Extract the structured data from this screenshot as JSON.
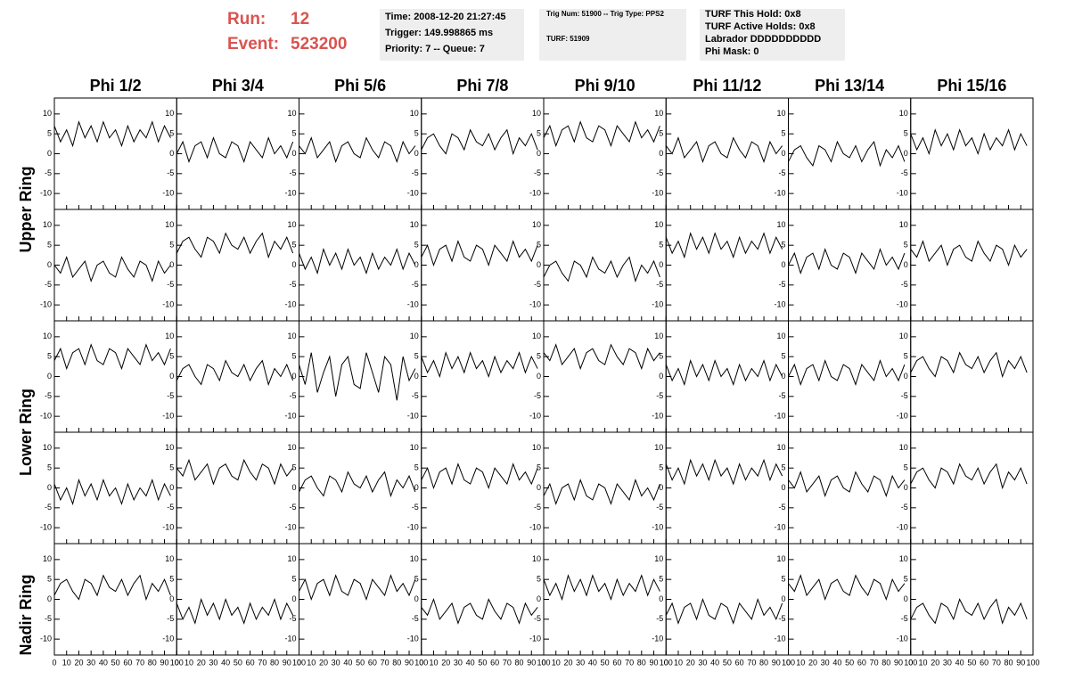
{
  "header": {
    "run_label": "Run:",
    "run": "12",
    "event_label": "Event:",
    "event": "523200",
    "box1": [
      "Time: 2008-12-20 21:27:45",
      "Trigger: 149.998865 ms",
      "Priority: 7 -- Queue: 7"
    ],
    "box2": [
      "Trig Num: 51900 -- Trig Type: PPS2",
      "TURF: 51909"
    ],
    "box3": [
      "TURF This Hold: 0x8",
      "TURF Active Holds: 0x8",
      "Labrador DDDDDDDDDD",
      "Phi Mask: 0"
    ]
  },
  "columns": [
    "Phi 1/2",
    "Phi 3/4",
    "Phi 5/6",
    "Phi 7/8",
    "Phi 9/10",
    "Phi 11/12",
    "Phi 13/14",
    "Phi 15/16"
  ],
  "rings": [
    "Upper Ring",
    "Lower Ring",
    "Nadir Ring"
  ],
  "axes": {
    "xlim": [
      0,
      100
    ],
    "ylim": [
      -14,
      14
    ],
    "xticks": [
      0,
      10,
      20,
      30,
      40,
      50,
      60,
      70,
      80,
      90,
      100
    ],
    "yticks": [
      -10,
      -5,
      0,
      5,
      10
    ],
    "x": [
      0,
      5,
      10,
      15,
      20,
      25,
      30,
      35,
      40,
      45,
      50,
      55,
      60,
      65,
      70,
      75,
      80,
      85,
      90,
      95
    ],
    "color": "#000000"
  },
  "chart_data": [
    {
      "type": "line",
      "values": [
        7,
        3,
        6,
        2,
        8,
        4,
        7,
        3,
        8,
        4,
        6,
        2,
        7,
        3,
        6,
        4,
        8,
        3,
        7,
        4
      ]
    },
    {
      "type": "line",
      "values": [
        0,
        3,
        -2,
        2,
        3,
        -1,
        4,
        0,
        -1,
        3,
        2,
        -2,
        3,
        1,
        -1,
        4,
        0,
        2,
        -1,
        3
      ]
    },
    {
      "type": "line",
      "values": [
        2,
        0,
        4,
        -1,
        1,
        3,
        -2,
        2,
        3,
        0,
        -1,
        4,
        1,
        -1,
        3,
        2,
        -2,
        3,
        0,
        2
      ]
    },
    {
      "type": "line",
      "values": [
        1,
        4,
        5,
        2,
        0,
        5,
        4,
        1,
        6,
        3,
        2,
        5,
        1,
        4,
        6,
        0,
        4,
        2,
        5,
        1
      ]
    },
    {
      "type": "line",
      "values": [
        4,
        7,
        2,
        6,
        7,
        3,
        8,
        4,
        3,
        7,
        6,
        2,
        7,
        5,
        3,
        8,
        4,
        6,
        3,
        7
      ]
    },
    {
      "type": "line",
      "values": [
        2,
        0,
        4,
        -1,
        1,
        3,
        -2,
        2,
        3,
        0,
        -1,
        4,
        1,
        -1,
        3,
        2,
        -2,
        3,
        0,
        2
      ]
    },
    {
      "type": "line",
      "values": [
        -2,
        1,
        2,
        -1,
        -3,
        2,
        1,
        -2,
        3,
        0,
        -1,
        2,
        -2,
        1,
        3,
        -3,
        1,
        -1,
        2,
        -2
      ]
    },
    {
      "type": "line",
      "values": [
        5,
        1,
        4,
        0,
        6,
        2,
        5,
        1,
        6,
        2,
        4,
        0,
        5,
        1,
        4,
        2,
        6,
        1,
        5,
        2
      ]
    },
    {
      "type": "line",
      "values": [
        0,
        -2,
        2,
        -3,
        -1,
        1,
        -4,
        0,
        1,
        -2,
        -3,
        2,
        -1,
        -3,
        1,
        0,
        -4,
        1,
        -2,
        0
      ]
    },
    {
      "type": "line",
      "values": [
        3,
        6,
        7,
        4,
        2,
        7,
        6,
        3,
        8,
        5,
        4,
        7,
        3,
        6,
        8,
        2,
        6,
        4,
        7,
        3
      ]
    },
    {
      "type": "line",
      "values": [
        3,
        -1,
        2,
        -2,
        4,
        0,
        3,
        -1,
        4,
        0,
        2,
        -2,
        3,
        -1,
        2,
        0,
        4,
        -1,
        3,
        0
      ]
    },
    {
      "type": "line",
      "values": [
        2,
        5,
        0,
        4,
        5,
        1,
        6,
        2,
        1,
        5,
        4,
        0,
        5,
        3,
        1,
        6,
        2,
        4,
        1,
        5
      ]
    },
    {
      "type": "line",
      "values": [
        -3,
        0,
        1,
        -2,
        -4,
        1,
        0,
        -3,
        2,
        -1,
        -2,
        1,
        -3,
        0,
        2,
        -4,
        0,
        -2,
        1,
        -3
      ]
    },
    {
      "type": "line",
      "values": [
        7,
        3,
        6,
        2,
        8,
        4,
        7,
        3,
        8,
        4,
        6,
        2,
        7,
        3,
        6,
        4,
        8,
        3,
        7,
        4
      ]
    },
    {
      "type": "line",
      "values": [
        0,
        3,
        -2,
        2,
        3,
        -1,
        4,
        0,
        -1,
        3,
        2,
        -2,
        3,
        1,
        -1,
        4,
        0,
        2,
        -1,
        3
      ]
    },
    {
      "type": "line",
      "values": [
        4,
        2,
        6,
        1,
        3,
        5,
        0,
        4,
        5,
        2,
        1,
        6,
        3,
        1,
        5,
        4,
        0,
        5,
        2,
        4
      ]
    },
    {
      "type": "line",
      "values": [
        4,
        7,
        2,
        6,
        7,
        3,
        8,
        4,
        3,
        7,
        6,
        2,
        7,
        5,
        3,
        8,
        4,
        6,
        3,
        7
      ]
    },
    {
      "type": "line",
      "values": [
        -1,
        2,
        3,
        0,
        -2,
        3,
        2,
        -1,
        4,
        1,
        0,
        3,
        -1,
        2,
        4,
        -2,
        2,
        0,
        3,
        -1
      ]
    },
    {
      "type": "line",
      "values": [
        3,
        -2,
        6,
        -4,
        1,
        5,
        -5,
        3,
        5,
        -2,
        -3,
        6,
        1,
        -4,
        5,
        3,
        -6,
        5,
        -1,
        2
      ]
    },
    {
      "type": "line",
      "values": [
        5,
        1,
        4,
        0,
        6,
        2,
        5,
        1,
        6,
        2,
        4,
        0,
        5,
        1,
        4,
        2,
        6,
        1,
        5,
        2
      ]
    },
    {
      "type": "line",
      "values": [
        6,
        4,
        8,
        3,
        5,
        7,
        2,
        6,
        7,
        4,
        3,
        8,
        5,
        3,
        7,
        6,
        2,
        7,
        4,
        6
      ]
    },
    {
      "type": "line",
      "values": [
        3,
        -1,
        2,
        -2,
        4,
        0,
        3,
        -1,
        4,
        0,
        2,
        -2,
        3,
        -1,
        2,
        0,
        4,
        -1,
        3,
        0
      ]
    },
    {
      "type": "line",
      "values": [
        0,
        3,
        -2,
        2,
        3,
        -1,
        4,
        0,
        -1,
        3,
        2,
        -2,
        3,
        1,
        -1,
        4,
        0,
        2,
        -1,
        3
      ]
    },
    {
      "type": "line",
      "values": [
        1,
        4,
        5,
        2,
        0,
        5,
        4,
        1,
        6,
        3,
        2,
        5,
        1,
        4,
        6,
        0,
        4,
        2,
        5,
        1
      ]
    },
    {
      "type": "line",
      "values": [
        1,
        -3,
        0,
        -4,
        2,
        -2,
        1,
        -3,
        2,
        -2,
        0,
        -4,
        1,
        -3,
        0,
        -2,
        2,
        -3,
        1,
        -2
      ]
    },
    {
      "type": "line",
      "values": [
        5,
        3,
        7,
        2,
        4,
        6,
        1,
        5,
        6,
        3,
        2,
        7,
        4,
        2,
        6,
        5,
        1,
        6,
        3,
        5
      ]
    },
    {
      "type": "line",
      "values": [
        -1,
        2,
        3,
        0,
        -2,
        3,
        2,
        -1,
        4,
        1,
        0,
        3,
        -1,
        2,
        4,
        -2,
        2,
        0,
        3,
        -1
      ]
    },
    {
      "type": "line",
      "values": [
        2,
        5,
        0,
        4,
        5,
        1,
        6,
        2,
        1,
        5,
        4,
        0,
        5,
        3,
        1,
        6,
        2,
        4,
        1,
        5
      ]
    },
    {
      "type": "line",
      "values": [
        -2,
        1,
        -4,
        0,
        1,
        -3,
        2,
        -2,
        -3,
        1,
        0,
        -4,
        1,
        -1,
        -3,
        2,
        -2,
        0,
        -3,
        1
      ]
    },
    {
      "type": "line",
      "values": [
        6,
        2,
        5,
        1,
        7,
        3,
        6,
        2,
        7,
        3,
        5,
        1,
        6,
        2,
        5,
        3,
        7,
        2,
        6,
        3
      ]
    },
    {
      "type": "line",
      "values": [
        2,
        0,
        4,
        -1,
        1,
        3,
        -2,
        2,
        3,
        0,
        -1,
        4,
        1,
        -1,
        3,
        2,
        -2,
        3,
        0,
        2
      ]
    },
    {
      "type": "line",
      "values": [
        1,
        4,
        5,
        2,
        0,
        5,
        4,
        1,
        6,
        3,
        2,
        5,
        1,
        4,
        6,
        0,
        4,
        2,
        5,
        1
      ]
    },
    {
      "type": "line",
      "values": [
        1,
        4,
        5,
        2,
        0,
        5,
        4,
        1,
        6,
        3,
        2,
        5,
        1,
        4,
        6,
        0,
        4,
        2,
        5,
        1
      ]
    },
    {
      "type": "line",
      "values": [
        -1,
        -5,
        -2,
        -6,
        0,
        -4,
        -1,
        -5,
        0,
        -4,
        -2,
        -6,
        -1,
        -5,
        -2,
        -4,
        0,
        -5,
        -1,
        -4
      ]
    },
    {
      "type": "line",
      "values": [
        2,
        5,
        0,
        4,
        5,
        1,
        6,
        2,
        1,
        5,
        4,
        0,
        5,
        3,
        1,
        6,
        2,
        4,
        1,
        5
      ]
    },
    {
      "type": "line",
      "values": [
        -2,
        -4,
        0,
        -5,
        -3,
        -1,
        -6,
        -2,
        -1,
        -4,
        -5,
        0,
        -3,
        -5,
        -1,
        -2,
        -6,
        -1,
        -4,
        -2
      ]
    },
    {
      "type": "line",
      "values": [
        5,
        1,
        4,
        0,
        6,
        2,
        5,
        1,
        6,
        2,
        4,
        0,
        5,
        1,
        4,
        2,
        6,
        1,
        5,
        2
      ]
    },
    {
      "type": "line",
      "values": [
        -4,
        -1,
        -6,
        -2,
        -1,
        -5,
        0,
        -4,
        -5,
        -1,
        -2,
        -6,
        -1,
        -3,
        -5,
        0,
        -4,
        -2,
        -5,
        -1
      ]
    },
    {
      "type": "line",
      "values": [
        4,
        2,
        6,
        1,
        3,
        5,
        0,
        4,
        5,
        2,
        1,
        6,
        3,
        1,
        5,
        4,
        0,
        5,
        2,
        4
      ]
    },
    {
      "type": "line",
      "values": [
        -5,
        -2,
        -1,
        -4,
        -6,
        -1,
        -2,
        -5,
        0,
        -3,
        -4,
        -1,
        -5,
        -2,
        0,
        -6,
        -2,
        -4,
        -1,
        -5
      ]
    }
  ]
}
